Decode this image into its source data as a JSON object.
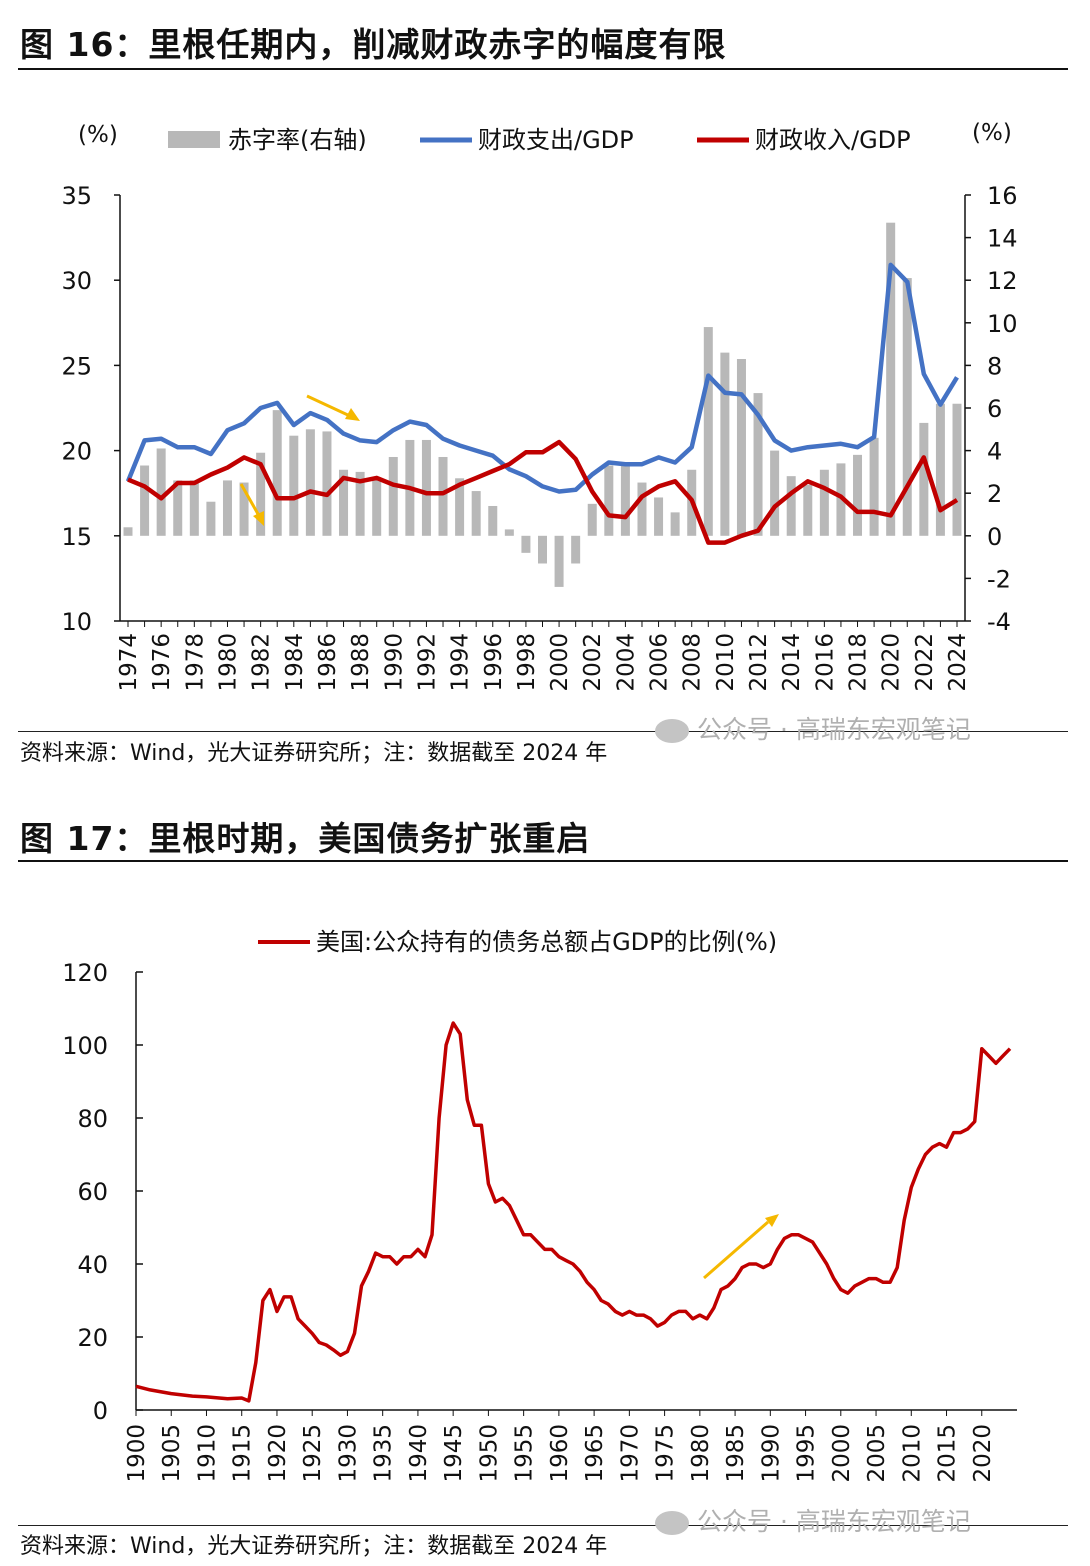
{
  "figure16": {
    "title": "图 16：里根任期内，削减财政赤字的幅度有限",
    "source": "资料来源：Wind，光大证券研究所；注：数据截至 2024 年",
    "watermark": "公众号 · 高瑞东宏观笔记"
  },
  "figure17": {
    "title": "图 17：里根时期，美国债务扩张重启",
    "source": "资料来源：Wind，光大证券研究所；注：数据截至 2024 年",
    "watermark": "公众号 · 高瑞东宏观笔记"
  },
  "chart_data": [
    {
      "type": "bar+line",
      "left_unit": "(%)",
      "right_unit": "(%)",
      "ylim_left": [
        10,
        35
      ],
      "yticks_left": [
        10,
        15,
        20,
        25,
        30,
        35
      ],
      "ylim_right": [
        -4,
        16
      ],
      "yticks_right": [
        -4,
        -2,
        0,
        2,
        4,
        6,
        8,
        10,
        12,
        14,
        16
      ],
      "x_tick_labels": [
        "1974",
        "1976",
        "1978",
        "1980",
        "1982",
        "1984",
        "1986",
        "1988",
        "1990",
        "1992",
        "1994",
        "1996",
        "1998",
        "2000",
        "2002",
        "2004",
        "2006",
        "2008",
        "2010",
        "2012",
        "2014",
        "2016",
        "2018",
        "2020",
        "2022",
        "2024"
      ],
      "years": [
        1974,
        1975,
        1976,
        1977,
        1978,
        1979,
        1980,
        1981,
        1982,
        1983,
        1984,
        1985,
        1986,
        1987,
        1988,
        1989,
        1990,
        1991,
        1992,
        1993,
        1994,
        1995,
        1996,
        1997,
        1998,
        1999,
        2000,
        2001,
        2002,
        2003,
        2004,
        2005,
        2006,
        2007,
        2008,
        2009,
        2010,
        2011,
        2012,
        2013,
        2014,
        2015,
        2016,
        2017,
        2018,
        2019,
        2020,
        2021,
        2022,
        2023,
        2024
      ],
      "colors": {
        "bars": "#b8b8b8",
        "spending": "#4472c4",
        "revenue": "#c00000",
        "arrow": "#f5b800"
      },
      "series": [
        {
          "name": "赤字率(右轴)",
          "axis": "right",
          "kind": "bar",
          "values": [
            0.4,
            3.3,
            4.1,
            2.6,
            2.6,
            1.6,
            2.6,
            2.5,
            3.9,
            5.9,
            4.7,
            5.0,
            4.9,
            3.1,
            3.0,
            2.7,
            3.7,
            4.5,
            4.5,
            3.7,
            2.7,
            2.1,
            1.4,
            0.3,
            -0.8,
            -1.3,
            -2.4,
            -1.3,
            1.5,
            3.3,
            3.4,
            2.5,
            1.8,
            1.1,
            3.1,
            9.8,
            8.6,
            8.3,
            6.7,
            4.0,
            2.8,
            2.4,
            3.1,
            3.4,
            3.8,
            4.6,
            14.7,
            12.1,
            5.3,
            6.2,
            6.2
          ]
        },
        {
          "name": "财政支出/GDP",
          "axis": "left",
          "kind": "line",
          "values": [
            18.2,
            20.6,
            20.7,
            20.2,
            20.2,
            19.8,
            21.2,
            21.6,
            22.5,
            22.8,
            21.5,
            22.2,
            21.8,
            21.0,
            20.6,
            20.5,
            21.2,
            21.7,
            21.5,
            20.7,
            20.3,
            20.0,
            19.7,
            18.9,
            18.5,
            17.9,
            17.6,
            17.7,
            18.6,
            19.3,
            19.2,
            19.2,
            19.6,
            19.3,
            20.2,
            24.4,
            23.4,
            23.3,
            22.1,
            20.6,
            20.0,
            20.2,
            20.3,
            20.4,
            20.2,
            20.8,
            30.9,
            29.9,
            24.5,
            22.7,
            24.3
          ]
        },
        {
          "name": "财政收入/GDP",
          "axis": "left",
          "kind": "line",
          "values": [
            18.3,
            17.9,
            17.2,
            18.1,
            18.1,
            18.6,
            19.0,
            19.6,
            19.2,
            17.2,
            17.2,
            17.6,
            17.4,
            18.4,
            18.2,
            18.4,
            18.0,
            17.8,
            17.5,
            17.5,
            18.0,
            18.4,
            18.8,
            19.2,
            19.9,
            19.9,
            20.5,
            19.5,
            17.6,
            16.2,
            16.1,
            17.3,
            17.9,
            18.2,
            17.1,
            14.6,
            14.6,
            15.0,
            15.3,
            16.7,
            17.5,
            18.2,
            17.8,
            17.3,
            16.4,
            16.4,
            16.2,
            17.9,
            19.6,
            16.5,
            17.1
          ]
        }
      ]
    },
    {
      "type": "line",
      "ylim": [
        0,
        120
      ],
      "yticks": [
        0,
        20,
        40,
        60,
        80,
        100,
        120
      ],
      "x_tick_labels": [
        "1900",
        "1905",
        "1910",
        "1915",
        "1920",
        "1925",
        "1930",
        "1935",
        "1940",
        "1945",
        "1950",
        "1955",
        "1960",
        "1965",
        "1970",
        "1975",
        "1980",
        "1985",
        "1990",
        "1995",
        "2000",
        "2005",
        "2010",
        "2015",
        "2020"
      ],
      "xlim": [
        1900,
        2025
      ],
      "colors": {
        "line": "#c00000",
        "arrow": "#f5b800"
      },
      "series": [
        {
          "name": "美国:公众持有的债务总额占GDP的比例(%)",
          "x": [
            1900,
            1902,
            1905,
            1908,
            1910,
            1913,
            1915,
            1916,
            1917,
            1918,
            1919,
            1920,
            1921,
            1922,
            1923,
            1924,
            1925,
            1926,
            1927,
            1928,
            1929,
            1930,
            1931,
            1932,
            1933,
            1934,
            1935,
            1936,
            1937,
            1938,
            1939,
            1940,
            1941,
            1942,
            1943,
            1944,
            1945,
            1946,
            1947,
            1948,
            1949,
            1950,
            1951,
            1952,
            1953,
            1954,
            1955,
            1956,
            1957,
            1958,
            1959,
            1960,
            1961,
            1962,
            1963,
            1964,
            1965,
            1966,
            1967,
            1968,
            1969,
            1970,
            1971,
            1972,
            1973,
            1974,
            1975,
            1976,
            1977,
            1978,
            1979,
            1980,
            1981,
            1982,
            1983,
            1984,
            1985,
            1986,
            1987,
            1988,
            1989,
            1990,
            1991,
            1992,
            1993,
            1994,
            1995,
            1996,
            1997,
            1998,
            1999,
            2000,
            2001,
            2002,
            2003,
            2004,
            2005,
            2006,
            2007,
            2008,
            2009,
            2010,
            2011,
            2012,
            2013,
            2014,
            2015,
            2016,
            2017,
            2018,
            2019,
            2020,
            2021,
            2022,
            2023,
            2024
          ],
          "values": [
            6.5,
            5.5,
            4.5,
            3.8,
            3.6,
            3.1,
            3.3,
            2.5,
            13,
            30,
            33,
            27,
            31,
            31,
            25,
            23,
            21,
            18.5,
            17.8,
            16.5,
            15,
            16,
            21,
            34,
            38,
            43,
            42,
            42,
            40,
            42,
            42,
            44,
            42,
            48,
            80,
            100,
            106,
            103,
            85,
            78,
            78,
            62,
            57,
            58,
            56,
            52,
            48,
            48,
            46,
            44,
            44,
            42,
            41,
            40,
            38,
            35,
            33,
            30,
            29,
            27,
            26,
            27,
            26,
            26,
            25,
            23,
            24,
            26,
            27,
            27,
            25,
            26,
            25,
            28,
            33,
            34,
            36,
            39,
            40,
            40,
            39,
            40,
            44,
            47,
            48,
            48,
            47,
            46,
            43,
            40,
            36,
            33,
            32,
            34,
            35,
            36,
            36,
            35,
            35,
            39,
            52,
            61,
            66,
            70,
            72,
            73,
            72,
            76,
            76,
            77,
            79,
            99,
            97,
            95,
            97,
            99
          ]
        }
      ]
    }
  ]
}
